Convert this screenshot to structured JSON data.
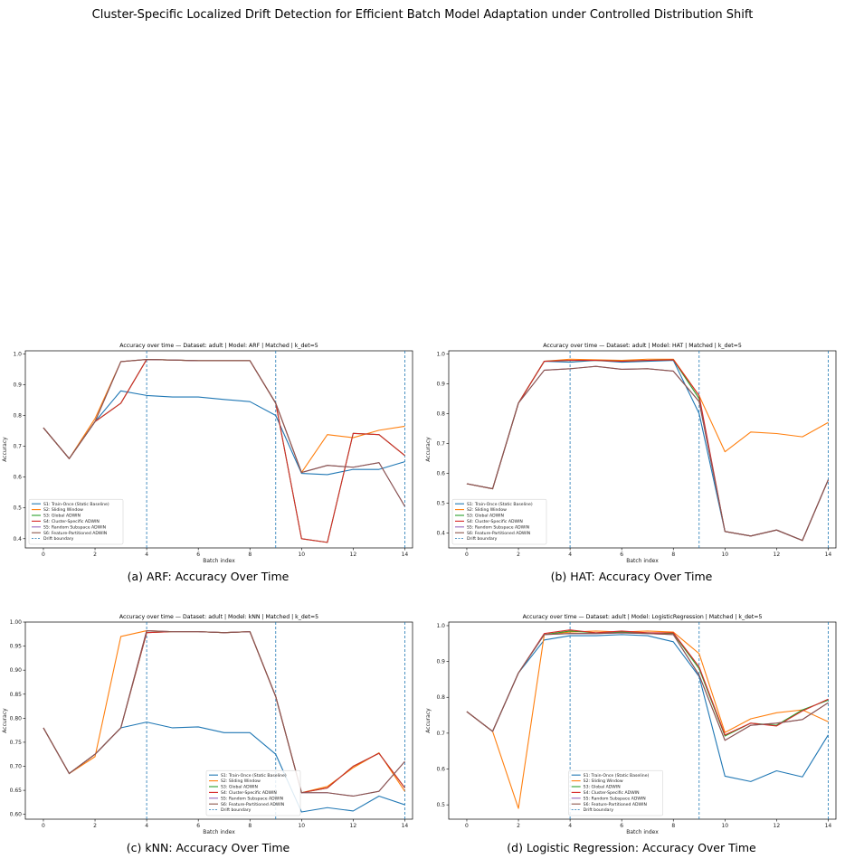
{
  "page_title": "Cluster-Specific Localized Drift Detection for Efficient Batch Model Adaptation under Controlled Distribution Shift",
  "legend_entries": [
    {
      "name": "S1: Train-Once (Static Baseline)",
      "color": "#1f77b4"
    },
    {
      "name": "S2: Sliding Window",
      "color": "#ff7f0e"
    },
    {
      "name": "S3: Global ADWIN",
      "color": "#2ca02c"
    },
    {
      "name": "S4: Cluster-Specific ADWIN",
      "color": "#d62728"
    },
    {
      "name": "S5: Random Subspace ADWIN",
      "color": "#9467bd"
    },
    {
      "name": "S6: Feature-Partitioned ADWIN",
      "color": "#8c564b"
    }
  ],
  "drift_label": "Drift boundary",
  "chart_data": [
    {
      "type": "line",
      "caption": "(a) ARF: Accuracy Over Time",
      "title": "Accuracy over time — Dataset: adult | Model: ARF | Matched | k_det=5",
      "xlabel": "Batch index",
      "ylabel": "Accuracy",
      "xlim": [
        -0.7,
        14.3
      ],
      "ylim": [
        0.37,
        1.01
      ],
      "xticks": [
        0,
        2,
        4,
        6,
        8,
        10,
        12,
        14
      ],
      "yticks": [
        0.4,
        0.5,
        0.6,
        0.7,
        0.8,
        0.9,
        1.0
      ],
      "ytick_labels": [
        "0.4",
        "0.5",
        "0.6",
        "0.7",
        "0.8",
        "0.9",
        "1.0"
      ],
      "drift_boundaries": [
        4,
        9,
        14
      ],
      "legend_position": "lower-left",
      "grid": false,
      "x": [
        0,
        1,
        2,
        3,
        4,
        5,
        6,
        7,
        8,
        9,
        10,
        11,
        12,
        13,
        14
      ],
      "series": [
        {
          "name": "S1: Train-Once (Static Baseline)",
          "values": [
            0.76,
            0.66,
            0.78,
            0.88,
            0.865,
            0.86,
            0.86,
            0.852,
            0.845,
            0.8,
            0.612,
            0.608,
            0.625,
            0.625,
            0.65
          ]
        },
        {
          "name": "S2: Sliding Window",
          "values": [
            0.76,
            0.66,
            0.79,
            0.975,
            0.982,
            0.98,
            0.978,
            0.978,
            0.978,
            0.84,
            0.615,
            0.738,
            0.728,
            0.752,
            0.765
          ]
        },
        {
          "name": "S3: Global ADWIN",
          "values": [
            0.76,
            0.66,
            0.78,
            0.84,
            0.982,
            0.98,
            0.978,
            0.978,
            0.978,
            0.84,
            0.4,
            0.388,
            0.742,
            0.738,
            0.67
          ]
        },
        {
          "name": "S4: Cluster-Specific ADWIN",
          "values": [
            0.76,
            0.66,
            0.78,
            0.84,
            0.982,
            0.98,
            0.978,
            0.978,
            0.978,
            0.84,
            0.4,
            0.388,
            0.742,
            0.738,
            0.67
          ]
        },
        {
          "name": "S5: Random Subspace ADWIN",
          "values": [
            0.76,
            0.66,
            0.78,
            0.975,
            0.982,
            0.98,
            0.978,
            0.978,
            0.978,
            0.84,
            0.615,
            0.638,
            0.632,
            0.647,
            0.505
          ]
        },
        {
          "name": "S6: Feature-Partitioned ADWIN",
          "values": [
            0.76,
            0.66,
            0.78,
            0.975,
            0.982,
            0.98,
            0.978,
            0.978,
            0.978,
            0.84,
            0.615,
            0.638,
            0.632,
            0.647,
            0.505
          ]
        }
      ]
    },
    {
      "type": "line",
      "caption": "(b) HAT: Accuracy Over Time",
      "title": "Accuracy over time — Dataset: adult | Model: HAT | Matched | k_det=5",
      "xlabel": "Batch index",
      "ylabel": "Accuracy",
      "xlim": [
        -0.7,
        14.3
      ],
      "ylim": [
        0.35,
        1.01
      ],
      "xticks": [
        0,
        2,
        4,
        6,
        8,
        10,
        12,
        14
      ],
      "yticks": [
        0.4,
        0.5,
        0.6,
        0.7,
        0.8,
        0.9,
        1.0
      ],
      "ytick_labels": [
        "0.4",
        "0.5",
        "0.6",
        "0.7",
        "0.8",
        "0.9",
        "1.0"
      ],
      "drift_boundaries": [
        4,
        9,
        14
      ],
      "legend_position": "lower-left",
      "grid": false,
      "x": [
        0,
        1,
        2,
        3,
        4,
        5,
        6,
        7,
        8,
        9,
        10,
        11,
        12,
        13,
        14
      ],
      "series": [
        {
          "name": "S1: Train-Once (Static Baseline)",
          "values": [
            0.565,
            0.548,
            0.835,
            0.975,
            0.972,
            0.978,
            0.972,
            0.975,
            0.978,
            0.8,
            0.405,
            0.39,
            0.41,
            0.375,
            0.578
          ]
        },
        {
          "name": "S2: Sliding Window",
          "values": [
            0.565,
            0.548,
            0.835,
            0.975,
            0.982,
            0.98,
            0.978,
            0.982,
            0.982,
            0.86,
            0.672,
            0.738,
            0.733,
            0.722,
            0.77
          ]
        },
        {
          "name": "S3: Global ADWIN",
          "values": [
            0.565,
            0.548,
            0.835,
            0.975,
            0.978,
            0.978,
            0.975,
            0.978,
            0.98,
            0.85,
            0.405,
            0.39,
            0.41,
            0.375,
            0.578
          ]
        },
        {
          "name": "S4: Cluster-Specific ADWIN",
          "values": [
            0.565,
            0.548,
            0.835,
            0.975,
            0.978,
            0.978,
            0.975,
            0.978,
            0.98,
            0.86,
            0.405,
            0.39,
            0.41,
            0.375,
            0.578
          ]
        },
        {
          "name": "S5: Random Subspace ADWIN",
          "values": [
            0.565,
            0.548,
            0.835,
            0.945,
            0.95,
            0.958,
            0.948,
            0.95,
            0.942,
            0.84,
            0.405,
            0.39,
            0.41,
            0.375,
            0.578
          ]
        },
        {
          "name": "S6: Feature-Partitioned ADWIN",
          "values": [
            0.565,
            0.548,
            0.835,
            0.945,
            0.95,
            0.958,
            0.948,
            0.95,
            0.942,
            0.84,
            0.405,
            0.39,
            0.41,
            0.375,
            0.578
          ]
        }
      ]
    },
    {
      "type": "line",
      "caption": "(c) kNN: Accuracy Over Time",
      "title": "Accuracy over time — Dataset: adult | Model: kNN | Matched | k_det=5",
      "xlabel": "Batch index",
      "ylabel": "Accuracy",
      "xlim": [
        -0.7,
        14.3
      ],
      "ylim": [
        0.59,
        1.0
      ],
      "xticks": [
        0,
        2,
        4,
        6,
        8,
        10,
        12,
        14
      ],
      "yticks": [
        0.6,
        0.65,
        0.7,
        0.75,
        0.8,
        0.85,
        0.9,
        0.95,
        1.0
      ],
      "ytick_labels": [
        "0.60",
        "0.65",
        "0.70",
        "0.75",
        "0.80",
        "0.85",
        "0.90",
        "0.95",
        "1.00"
      ],
      "drift_boundaries": [
        4,
        9,
        14
      ],
      "legend_position": "lower-right",
      "grid": false,
      "x": [
        0,
        1,
        2,
        3,
        4,
        5,
        6,
        7,
        8,
        9,
        10,
        11,
        12,
        13,
        14
      ],
      "series": [
        {
          "name": "S1: Train-Once (Static Baseline)",
          "values": [
            0.78,
            0.685,
            0.725,
            0.78,
            0.792,
            0.78,
            0.782,
            0.77,
            0.77,
            0.725,
            0.605,
            0.614,
            0.607,
            0.638,
            0.62
          ]
        },
        {
          "name": "S2: Sliding Window",
          "values": [
            0.78,
            0.685,
            0.72,
            0.97,
            0.982,
            0.98,
            0.98,
            0.978,
            0.98,
            0.845,
            0.645,
            0.658,
            0.697,
            0.728,
            0.648
          ]
        },
        {
          "name": "S3: Global ADWIN",
          "values": [
            0.78,
            0.685,
            0.725,
            0.78,
            0.978,
            0.98,
            0.98,
            0.978,
            0.98,
            0.845,
            0.645,
            0.655,
            0.7,
            0.727,
            0.655
          ]
        },
        {
          "name": "S4: Cluster-Specific ADWIN",
          "values": [
            0.78,
            0.685,
            0.725,
            0.78,
            0.978,
            0.98,
            0.98,
            0.978,
            0.98,
            0.845,
            0.645,
            0.655,
            0.7,
            0.727,
            0.655
          ]
        },
        {
          "name": "S5: Random Subspace ADWIN",
          "values": [
            0.78,
            0.685,
            0.725,
            0.78,
            0.982,
            0.98,
            0.98,
            0.978,
            0.98,
            0.845,
            0.645,
            0.645,
            0.638,
            0.648,
            0.71
          ]
        },
        {
          "name": "S6: Feature-Partitioned ADWIN",
          "values": [
            0.78,
            0.685,
            0.725,
            0.78,
            0.982,
            0.98,
            0.98,
            0.978,
            0.98,
            0.845,
            0.645,
            0.645,
            0.638,
            0.648,
            0.71
          ]
        }
      ]
    },
    {
      "type": "line",
      "caption": "(d) Logistic Regression: Accuracy Over Time",
      "title": "Accuracy over time — Dataset: adult | Model: LogisticRegression | Matched | k_det=5",
      "xlabel": "Batch index",
      "ylabel": "Accuracy",
      "xlim": [
        -0.7,
        14.3
      ],
      "ylim": [
        0.46,
        1.01
      ],
      "xticks": [
        0,
        2,
        4,
        6,
        8,
        10,
        12,
        14
      ],
      "yticks": [
        0.5,
        0.6,
        0.7,
        0.8,
        0.9,
        1.0
      ],
      "ytick_labels": [
        "0.5",
        "0.6",
        "0.7",
        "0.8",
        "0.9",
        "1.0"
      ],
      "drift_boundaries": [
        4,
        9,
        14
      ],
      "legend_position": "lower-center",
      "grid": false,
      "x": [
        0,
        1,
        2,
        3,
        4,
        5,
        6,
        7,
        8,
        9,
        10,
        11,
        12,
        13,
        14
      ],
      "series": [
        {
          "name": "S1: Train-Once (Static Baseline)",
          "values": [
            0.76,
            0.705,
            0.868,
            0.96,
            0.972,
            0.972,
            0.975,
            0.972,
            0.955,
            0.858,
            0.58,
            0.565,
            0.595,
            0.578,
            0.695
          ]
        },
        {
          "name": "S2: Sliding Window",
          "values": [
            0.76,
            0.705,
            0.49,
            0.975,
            0.982,
            0.985,
            0.982,
            0.985,
            0.982,
            0.922,
            0.702,
            0.74,
            0.757,
            0.765,
            0.732
          ]
        },
        {
          "name": "S3: Global ADWIN",
          "values": [
            0.76,
            0.705,
            0.868,
            0.975,
            0.985,
            0.98,
            0.982,
            0.98,
            0.978,
            0.88,
            0.692,
            0.728,
            0.722,
            0.765,
            0.792
          ]
        },
        {
          "name": "S4: Cluster-Specific ADWIN",
          "values": [
            0.76,
            0.705,
            0.868,
            0.978,
            0.988,
            0.98,
            0.985,
            0.98,
            0.98,
            0.885,
            0.695,
            0.728,
            0.72,
            0.762,
            0.795
          ]
        },
        {
          "name": "S5: Random Subspace ADWIN",
          "values": [
            0.76,
            0.705,
            0.868,
            0.975,
            0.978,
            0.978,
            0.98,
            0.978,
            0.975,
            0.862,
            0.68,
            0.722,
            0.728,
            0.738,
            0.785
          ]
        },
        {
          "name": "S6: Feature-Partitioned ADWIN",
          "values": [
            0.76,
            0.705,
            0.868,
            0.975,
            0.978,
            0.978,
            0.98,
            0.978,
            0.975,
            0.862,
            0.68,
            0.722,
            0.728,
            0.738,
            0.785
          ]
        }
      ]
    }
  ]
}
